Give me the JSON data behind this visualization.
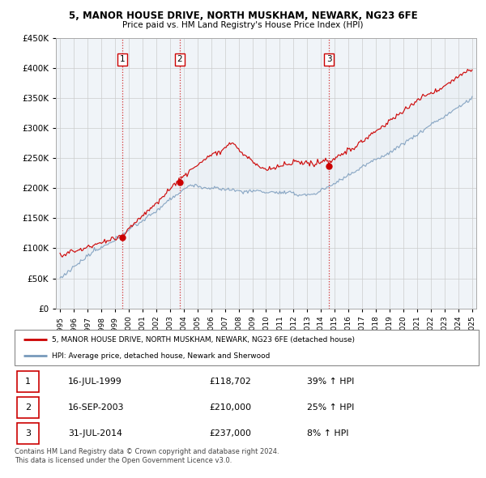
{
  "title": "5, MANOR HOUSE DRIVE, NORTH MUSKHAM, NEWARK, NG23 6FE",
  "subtitle": "Price paid vs. HM Land Registry's House Price Index (HPI)",
  "sale_dates": [
    1999.54,
    2003.71,
    2014.58
  ],
  "sale_prices": [
    118702,
    210000,
    237000
  ],
  "sale_labels": [
    "1",
    "2",
    "3"
  ],
  "legend_line1": "5, MANOR HOUSE DRIVE, NORTH MUSKHAM, NEWARK, NG23 6FE (detached house)",
  "legend_line2": "HPI: Average price, detached house, Newark and Sherwood",
  "table_data": [
    [
      "1",
      "16-JUL-1999",
      "£118,702",
      "39% ↑ HPI"
    ],
    [
      "2",
      "16-SEP-2003",
      "£210,000",
      "25% ↑ HPI"
    ],
    [
      "3",
      "31-JUL-2014",
      "£237,000",
      "8% ↑ HPI"
    ]
  ],
  "footer": "Contains HM Land Registry data © Crown copyright and database right 2024.\nThis data is licensed under the Open Government Licence v3.0.",
  "red_color": "#cc0000",
  "blue_color": "#7799bb",
  "fill_color": "#dde8f0",
  "grid_color": "#cccccc",
  "label_box_color": "#cc0000"
}
